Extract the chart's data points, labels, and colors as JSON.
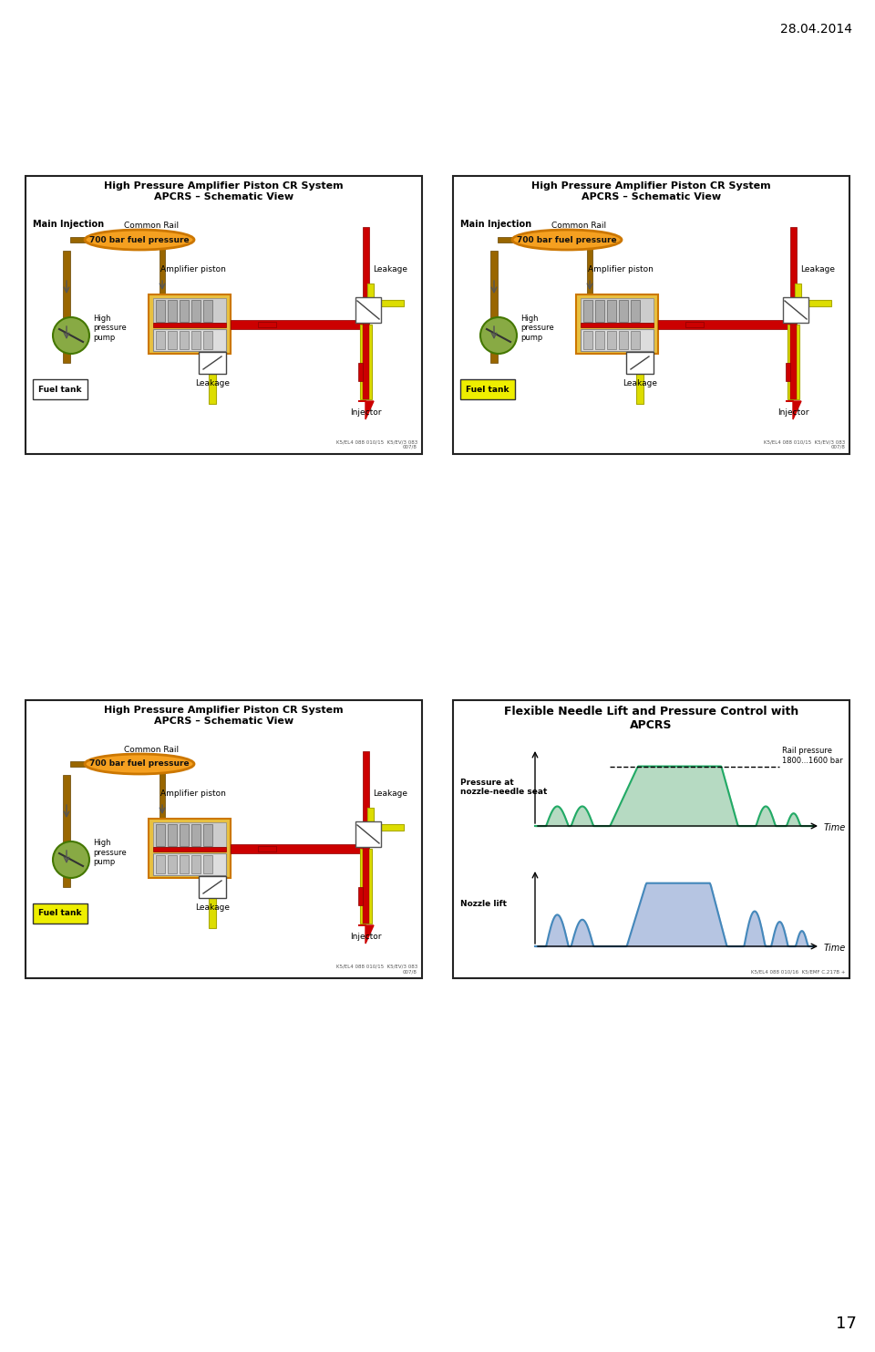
{
  "date_text": "28.04.2014",
  "page_number": "17",
  "bg_color": "#ffffff",
  "title_schematic": "High Pressure Amplifier Piston CR System\nAPCRS – Schematic View",
  "title_flexible": "Flexible Needle Lift and Pressure Control with\nAPCRS",
  "label_main_injection": "Main Injection",
  "label_common_rail": "Common Rail",
  "label_700bar": "700 bar fuel pressure",
  "label_amp_piston": "Amplifier piston",
  "label_leakage": "Leakage",
  "label_high_pressure_pump": "High\npressure\npump",
  "label_fuel_tank": "Fuel tank",
  "label_injector": "Injector",
  "label_leakage2": "Leakage",
  "label_pressure_seat": "Pressure at\nnozzle-needle seat",
  "label_nozzle_lift": "Nozzle lift",
  "label_rail_pressure": "Rail pressure\n1800...1600 bar",
  "label_time": "Time",
  "code_schematic": "K5/EL4 088 010/15  K5/EV/3 083\n007/8",
  "code_flexible": "K5/EL4 088 010/16  K5/EMF C.217B +",
  "orange_color": "#f5a020",
  "dark_orange": "#cc7700",
  "red_color": "#cc0000",
  "dark_red": "#8b0000",
  "yellow_color": "#dddd00",
  "dark_yellow": "#aaaa00",
  "green_pump": "#88aa44",
  "green_chart": "#aad4b8",
  "green_line": "#22aa66",
  "blue_chart": "#aabbdd",
  "blue_line": "#4488bb",
  "brown_pipe": "#996600",
  "dark_brown": "#664400",
  "gray_piston": "#cccccc",
  "dark_gray": "#888888"
}
